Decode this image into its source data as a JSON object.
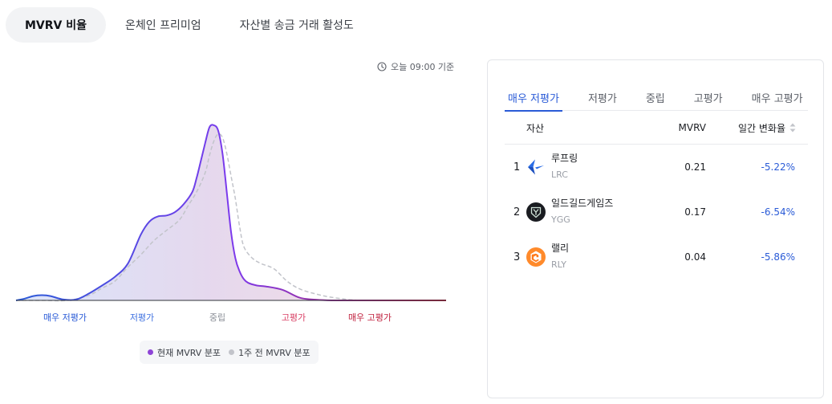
{
  "tabs": [
    {
      "label": "MVRV 비율",
      "active": true
    },
    {
      "label": "온체인 프리미엄",
      "active": false
    },
    {
      "label": "자산별 송금 거래 활성도",
      "active": false
    }
  ],
  "timestamp": "오늘 09:00 기준",
  "chart_data": {
    "type": "area",
    "x_categories": [
      "매우 저평가",
      "저평가",
      "중립",
      "고평가",
      "매우 고평가"
    ],
    "category_colors": [
      "#2a5bd7",
      "#3d70e0",
      "#8a8e96",
      "#d94166",
      "#c0223f"
    ],
    "series": [
      {
        "name": "현재 MVRV 분포",
        "color": "#8e44d6",
        "x": [
          0.0,
          0.02,
          0.04,
          0.06,
          0.08,
          0.11,
          0.14,
          0.17,
          0.2,
          0.23,
          0.26,
          0.29,
          0.31,
          0.33,
          0.35,
          0.37,
          0.39,
          0.41,
          0.42,
          0.43,
          0.44,
          0.45,
          0.46,
          0.47,
          0.48,
          0.49,
          0.5,
          0.51,
          0.52,
          0.53,
          0.54,
          0.56,
          0.58,
          0.62,
          0.66,
          0.7,
          0.74,
          0.78,
          0.84,
          0.9,
          0.96,
          1.0
        ],
        "y": [
          0.0,
          0.01,
          0.025,
          0.03,
          0.025,
          0.005,
          0.005,
          0.04,
          0.085,
          0.135,
          0.21,
          0.375,
          0.45,
          0.48,
          0.485,
          0.505,
          0.55,
          0.62,
          0.7,
          0.8,
          0.9,
          0.99,
          1.0,
          0.97,
          0.84,
          0.62,
          0.39,
          0.24,
          0.165,
          0.12,
          0.1,
          0.085,
          0.08,
          0.06,
          0.015,
          0.003,
          0.0,
          0.0,
          0.0,
          0.0,
          0.0,
          0.0
        ]
      },
      {
        "name": "1주 전 MVRV 분포",
        "color": "#c2c4ca",
        "x": [
          0.0,
          0.06,
          0.12,
          0.17,
          0.2,
          0.23,
          0.26,
          0.29,
          0.32,
          0.35,
          0.38,
          0.4,
          0.42,
          0.44,
          0.45,
          0.46,
          0.47,
          0.48,
          0.49,
          0.5,
          0.51,
          0.52,
          0.53,
          0.55,
          0.57,
          0.6,
          0.63,
          0.66,
          0.7,
          0.74,
          0.8,
          0.88,
          1.0
        ],
        "y": [
          0.0,
          0.0,
          0.0,
          0.03,
          0.07,
          0.11,
          0.19,
          0.26,
          0.34,
          0.4,
          0.46,
          0.54,
          0.62,
          0.73,
          0.83,
          0.91,
          0.95,
          0.93,
          0.84,
          0.71,
          0.58,
          0.42,
          0.305,
          0.24,
          0.21,
          0.18,
          0.11,
          0.065,
          0.035,
          0.015,
          0.0,
          0.0,
          0.0
        ]
      }
    ],
    "legend": [
      "현재 MVRV 분포",
      "1주 전 MVRV 분포"
    ],
    "axis_line_colors": [
      "#2a5bd7",
      "#7c3aed",
      "#c0223f"
    ]
  },
  "legend": {
    "current_label": "현재 MVRV 분포",
    "current_color": "#8e44d6",
    "previous_label": "1주 전 MVRV 분포",
    "previous_color": "#c2c4ca"
  },
  "panel": {
    "tabs": [
      {
        "label": "매우 저평가",
        "active": true
      },
      {
        "label": "저평가",
        "active": false
      },
      {
        "label": "중립",
        "active": false
      },
      {
        "label": "고평가",
        "active": false
      },
      {
        "label": "매우 고평가",
        "active": false
      }
    ],
    "columns": {
      "asset": "자산",
      "mvrv": "MVRV",
      "change": "일간 변화율"
    },
    "rows": [
      {
        "rank": "1",
        "name": "루프링",
        "symbol": "LRC",
        "icon": "loopring-icon",
        "mvrv": "0.21",
        "change": "-5.22%"
      },
      {
        "rank": "2",
        "name": "일드길드게임즈",
        "symbol": "YGG",
        "icon": "yield-guild-games-icon",
        "mvrv": "0.17",
        "change": "-6.54%"
      },
      {
        "rank": "3",
        "name": "랠리",
        "symbol": "RLY",
        "icon": "rally-icon",
        "mvrv": "0.04",
        "change": "-5.86%"
      }
    ],
    "change_color": "#2a5bd7"
  }
}
